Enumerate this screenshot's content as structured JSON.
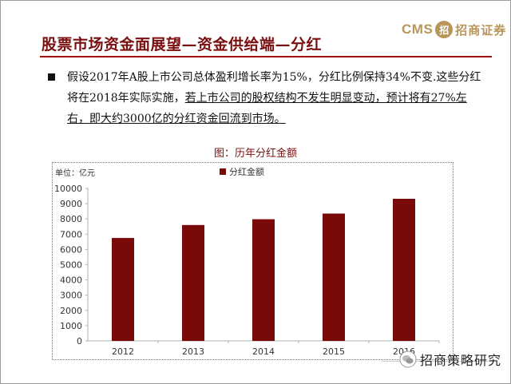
{
  "slide": {
    "title": "股票市场资金面展望—资金供给端—分红",
    "logo": {
      "brand": "CMS",
      "mark": "招",
      "name": "招商证券"
    },
    "bullet_parts": [
      "假设2017年A股上市公司总体盈利增长率为15%，分红比例保持34%不变.这些分红将在2018年实际实施，",
      "若上市公司的股权结构不发生明显变动，预计将有27%左右，即大约3000亿的分红资金回流到市场。"
    ]
  },
  "watermark": {
    "text": "招商策略研究"
  },
  "chart_data": {
    "type": "bar",
    "title": "图：历年分红金额",
    "unit_label": "单位：亿元",
    "legend": [
      "分红金额"
    ],
    "legend_position": "top-center",
    "categories": [
      "2012",
      "2013",
      "2014",
      "2015",
      "2016"
    ],
    "series": [
      {
        "name": "分红金额",
        "values": [
          6750,
          7600,
          7980,
          8350,
          9320
        ]
      }
    ],
    "ylim": [
      0,
      10000
    ],
    "yticks": [
      0,
      1000,
      2000,
      3000,
      4000,
      5000,
      6000,
      7000,
      8000,
      9000,
      10000
    ],
    "grid": false,
    "colors": {
      "bar": "#7a0a0a",
      "axis": "#b0b0b0"
    }
  }
}
